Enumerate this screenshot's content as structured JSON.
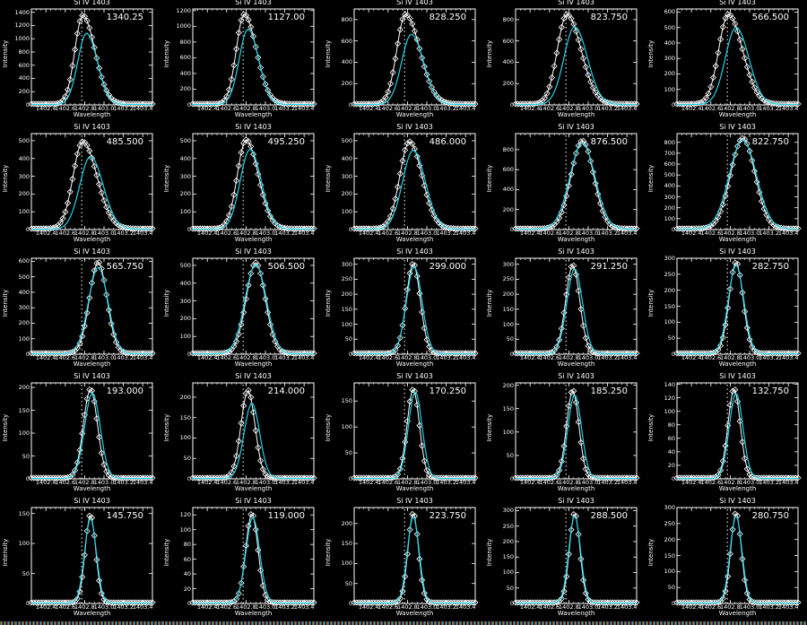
{
  "figure": {
    "layout": {
      "rows": 5,
      "cols": 5
    },
    "panel_title": "Si IV 1403",
    "xlabel": "Wavelength",
    "ylabel": "Intensity",
    "x_ticks": [
      "1402.4",
      "1402.6",
      "1402.8",
      "1403.0",
      "1403.2",
      "1403.4"
    ],
    "rest_wavelength_marker": 1402.77,
    "colors": {
      "background": "#000000",
      "data": "#ffffff",
      "fit": "#22d3e6",
      "marker_line": "#ffffff"
    }
  },
  "chart_data": [
    {
      "type": "line",
      "title": "Si IV 1403",
      "annotation": "1340.25",
      "ylim": [
        0,
        1450
      ],
      "yticks": [
        0,
        200,
        400,
        600,
        800,
        1000,
        1200,
        1400
      ],
      "peak": 1340,
      "peak_x": 1402.78,
      "fit_peak": 1080,
      "fit_x": 1402.82,
      "fit_sigma": 0.09,
      "red_wing": 0.35,
      "xlabel": "Wavelength",
      "ylabel": "Intensity"
    },
    {
      "type": "line",
      "title": "Si IV 1403",
      "annotation": "1127.00",
      "ylim": [
        0,
        1220
      ],
      "yticks": [
        0,
        200,
        400,
        600,
        800,
        1000,
        1200
      ],
      "peak": 1140,
      "peak_x": 1402.78,
      "fit_peak": 960,
      "fit_x": 1402.82,
      "fit_sigma": 0.09,
      "red_wing": 0.35,
      "xlabel": "Wavelength",
      "ylabel": "Intensity"
    },
    {
      "type": "line",
      "title": "Si IV 1403",
      "annotation": "828.250",
      "ylim": [
        0,
        900
      ],
      "yticks": [
        0,
        200,
        400,
        600,
        800
      ],
      "peak": 840,
      "peak_x": 1402.78,
      "fit_peak": 660,
      "fit_x": 1402.84,
      "fit_sigma": 0.1,
      "red_wing": 0.4,
      "xlabel": "Wavelength",
      "ylabel": "Intensity"
    },
    {
      "type": "line",
      "title": "Si IV 1403",
      "annotation": "823.750",
      "ylim": [
        0,
        900
      ],
      "yticks": [
        0,
        200,
        400,
        600,
        800
      ],
      "peak": 840,
      "peak_x": 1402.78,
      "fit_peak": 730,
      "fit_x": 1402.86,
      "fit_sigma": 0.11,
      "red_wing": 0.3,
      "xlabel": "Wavelength",
      "ylabel": "Intensity"
    },
    {
      "type": "line",
      "title": "Si IV 1403",
      "annotation": "566.500",
      "ylim": [
        0,
        620
      ],
      "yticks": [
        0,
        100,
        200,
        300,
        400,
        500,
        600
      ],
      "peak": 580,
      "peak_x": 1402.78,
      "fit_peak": 500,
      "fit_x": 1402.86,
      "fit_sigma": 0.11,
      "red_wing": 0.3,
      "xlabel": "Wavelength",
      "ylabel": "Intensity"
    },
    {
      "type": "line",
      "title": "Si IV 1403",
      "annotation": "485.500",
      "ylim": [
        0,
        540
      ],
      "yticks": [
        0,
        100,
        200,
        300,
        400,
        500
      ],
      "peak": 490,
      "peak_x": 1402.78,
      "fit_peak": 410,
      "fit_x": 1402.86,
      "fit_sigma": 0.11,
      "red_wing": 0.3,
      "xlabel": "Wavelength",
      "ylabel": "Intensity"
    },
    {
      "type": "line",
      "title": "Si IV 1403",
      "annotation": "495.250",
      "ylim": [
        0,
        540
      ],
      "yticks": [
        0,
        100,
        200,
        300,
        400,
        500
      ],
      "peak": 500,
      "peak_x": 1402.8,
      "fit_peak": 450,
      "fit_x": 1402.84,
      "fit_sigma": 0.1,
      "red_wing": 0.25,
      "xlabel": "Wavelength",
      "ylabel": "Intensity"
    },
    {
      "type": "line",
      "title": "Si IV 1403",
      "annotation": "486.000",
      "ylim": [
        0,
        540
      ],
      "yticks": [
        0,
        100,
        200,
        300,
        400,
        500
      ],
      "peak": 490,
      "peak_x": 1402.82,
      "fit_peak": 445,
      "fit_x": 1402.86,
      "fit_sigma": 0.11,
      "red_wing": 0.2,
      "xlabel": "Wavelength",
      "ylabel": "Intensity"
    },
    {
      "type": "line",
      "title": "Si IV 1403",
      "annotation": "876.500",
      "ylim": [
        0,
        960
      ],
      "yticks": [
        0,
        200,
        400,
        600,
        800
      ],
      "peak": 880,
      "peak_x": 1402.94,
      "fit_peak": 860,
      "fit_x": 1402.94,
      "fit_sigma": 0.13,
      "red_wing": 0,
      "xlabel": "Wavelength",
      "ylabel": "Intensity"
    },
    {
      "type": "line",
      "title": "Si IV 1403",
      "annotation": "822.750",
      "ylim": [
        0,
        880
      ],
      "yticks": [
        0,
        100,
        200,
        300,
        400,
        500,
        600,
        700,
        800
      ],
      "peak": 830,
      "peak_x": 1402.93,
      "fit_peak": 820,
      "fit_x": 1402.93,
      "fit_sigma": 0.14,
      "red_wing": 0,
      "xlabel": "Wavelength",
      "ylabel": "Intensity"
    },
    {
      "type": "line",
      "title": "Si IV 1403",
      "annotation": "565.750",
      "ylim": [
        0,
        620
      ],
      "yticks": [
        0,
        100,
        200,
        300,
        400,
        500,
        600
      ],
      "peak": 590,
      "peak_x": 1402.94,
      "fit_peak": 560,
      "fit_x": 1402.94,
      "fit_sigma": 0.1,
      "red_wing": 0,
      "xlabel": "Wavelength",
      "ylabel": "Intensity"
    },
    {
      "type": "line",
      "title": "Si IV 1403",
      "annotation": "506.500",
      "ylim": [
        0,
        540
      ],
      "yticks": [
        0,
        100,
        200,
        300,
        400,
        500
      ],
      "peak": 510,
      "peak_x": 1402.9,
      "fit_peak": 505,
      "fit_x": 1402.9,
      "fit_sigma": 0.11,
      "red_wing": 0,
      "xlabel": "Wavelength",
      "ylabel": "Intensity"
    },
    {
      "type": "line",
      "title": "Si IV 1403",
      "annotation": "299.000",
      "ylim": [
        0,
        320
      ],
      "yticks": [
        0,
        50,
        100,
        150,
        200,
        250,
        300
      ],
      "peak": 300,
      "peak_x": 1402.86,
      "fit_peak": 292,
      "fit_x": 1402.87,
      "fit_sigma": 0.08,
      "red_wing": 0,
      "xlabel": "Wavelength",
      "ylabel": "Intensity"
    },
    {
      "type": "line",
      "title": "Si IV 1403",
      "annotation": "291.250",
      "ylim": [
        0,
        320
      ],
      "yticks": [
        0,
        50,
        100,
        150,
        200,
        250,
        300
      ],
      "peak": 295,
      "peak_x": 1402.84,
      "fit_peak": 285,
      "fit_x": 1402.86,
      "fit_sigma": 0.08,
      "red_wing": 0,
      "xlabel": "Wavelength",
      "ylabel": "Intensity"
    },
    {
      "type": "line",
      "title": "Si IV 1403",
      "annotation": "282.750",
      "ylim": [
        0,
        300
      ],
      "yticks": [
        0,
        50,
        100,
        150,
        200,
        250,
        300
      ],
      "peak": 285,
      "peak_x": 1402.86,
      "fit_peak": 278,
      "fit_x": 1402.86,
      "fit_sigma": 0.08,
      "red_wing": 0,
      "xlabel": "Wavelength",
      "ylabel": "Intensity"
    },
    {
      "type": "line",
      "title": "Si IV 1403",
      "annotation": "193.000",
      "ylim": [
        0,
        210
      ],
      "yticks": [
        0,
        50,
        100,
        150,
        200
      ],
      "peak": 195,
      "peak_x": 1402.86,
      "fit_peak": 188,
      "fit_x": 1402.88,
      "fit_sigma": 0.08,
      "red_wing": 0,
      "xlabel": "Wavelength",
      "ylabel": "Intensity"
    },
    {
      "type": "line",
      "title": "Si IV 1403",
      "annotation": "214.000",
      "ylim": [
        0,
        235
      ],
      "yticks": [
        0,
        50,
        100,
        150,
        200
      ],
      "peak": 215,
      "peak_x": 1402.82,
      "fit_peak": 185,
      "fit_x": 1402.86,
      "fit_sigma": 0.08,
      "red_wing": 0,
      "xlabel": "Wavelength",
      "ylabel": "Intensity"
    },
    {
      "type": "line",
      "title": "Si IV 1403",
      "annotation": "170.250",
      "ylim": [
        0,
        185
      ],
      "yticks": [
        0,
        50,
        100,
        150
      ],
      "peak": 172,
      "peak_x": 1402.86,
      "fit_peak": 168,
      "fit_x": 1402.88,
      "fit_sigma": 0.07,
      "red_wing": 0,
      "xlabel": "Wavelength",
      "ylabel": "Intensity"
    },
    {
      "type": "line",
      "title": "Si IV 1403",
      "annotation": "185.250",
      "ylim": [
        0,
        205
      ],
      "yticks": [
        0,
        50,
        100,
        150,
        200
      ],
      "peak": 188,
      "peak_x": 1402.84,
      "fit_peak": 180,
      "fit_x": 1402.86,
      "fit_sigma": 0.07,
      "red_wing": 0,
      "xlabel": "Wavelength",
      "ylabel": "Intensity"
    },
    {
      "type": "line",
      "title": "Si IV 1403",
      "annotation": "132.750",
      "ylim": [
        0,
        142
      ],
      "yticks": [
        0,
        20,
        40,
        60,
        80,
        100,
        120,
        140
      ],
      "peak": 132,
      "peak_x": 1402.84,
      "fit_peak": 127,
      "fit_x": 1402.86,
      "fit_sigma": 0.07,
      "red_wing": 0,
      "xlabel": "Wavelength",
      "ylabel": "Intensity"
    },
    {
      "type": "line",
      "title": "Si IV 1403",
      "annotation": "145.750",
      "ylim": [
        0,
        160
      ],
      "yticks": [
        0,
        50,
        100,
        150
      ],
      "peak": 147,
      "peak_x": 1402.86,
      "fit_peak": 142,
      "fit_x": 1402.86,
      "fit_sigma": 0.06,
      "red_wing": 0,
      "xlabel": "Wavelength",
      "ylabel": "Intensity"
    },
    {
      "type": "line",
      "title": "Si IV 1403",
      "annotation": "119.000",
      "ylim": [
        0,
        130
      ],
      "yticks": [
        0,
        20,
        40,
        60,
        80,
        100,
        120
      ],
      "peak": 121,
      "peak_x": 1402.86,
      "fit_peak": 117,
      "fit_x": 1402.87,
      "fit_sigma": 0.07,
      "red_wing": 0,
      "xlabel": "Wavelength",
      "ylabel": "Intensity"
    },
    {
      "type": "line",
      "title": "Si IV 1403",
      "annotation": "223.750",
      "ylim": [
        0,
        240
      ],
      "yticks": [
        0,
        50,
        100,
        150,
        200
      ],
      "peak": 225,
      "peak_x": 1402.86,
      "fit_peak": 218,
      "fit_x": 1402.86,
      "fit_sigma": 0.06,
      "red_wing": 0,
      "xlabel": "Wavelength",
      "ylabel": "Intensity"
    },
    {
      "type": "line",
      "title": "Si IV 1403",
      "annotation": "288.500",
      "ylim": [
        0,
        310
      ],
      "yticks": [
        0,
        50,
        100,
        150,
        200,
        250,
        300
      ],
      "peak": 290,
      "peak_x": 1402.86,
      "fit_peak": 285,
      "fit_x": 1402.86,
      "fit_sigma": 0.06,
      "red_wing": 0,
      "xlabel": "Wavelength",
      "ylabel": "Intensity"
    },
    {
      "type": "line",
      "title": "Si IV 1403",
      "annotation": "280.750",
      "ylim": [
        0,
        300
      ],
      "yticks": [
        0,
        50,
        100,
        150,
        200,
        250,
        300
      ],
      "peak": 282,
      "peak_x": 1402.86,
      "fit_peak": 275,
      "fit_x": 1402.86,
      "fit_sigma": 0.06,
      "red_wing": 0,
      "xlabel": "Wavelength",
      "ylabel": "Intensity"
    }
  ]
}
